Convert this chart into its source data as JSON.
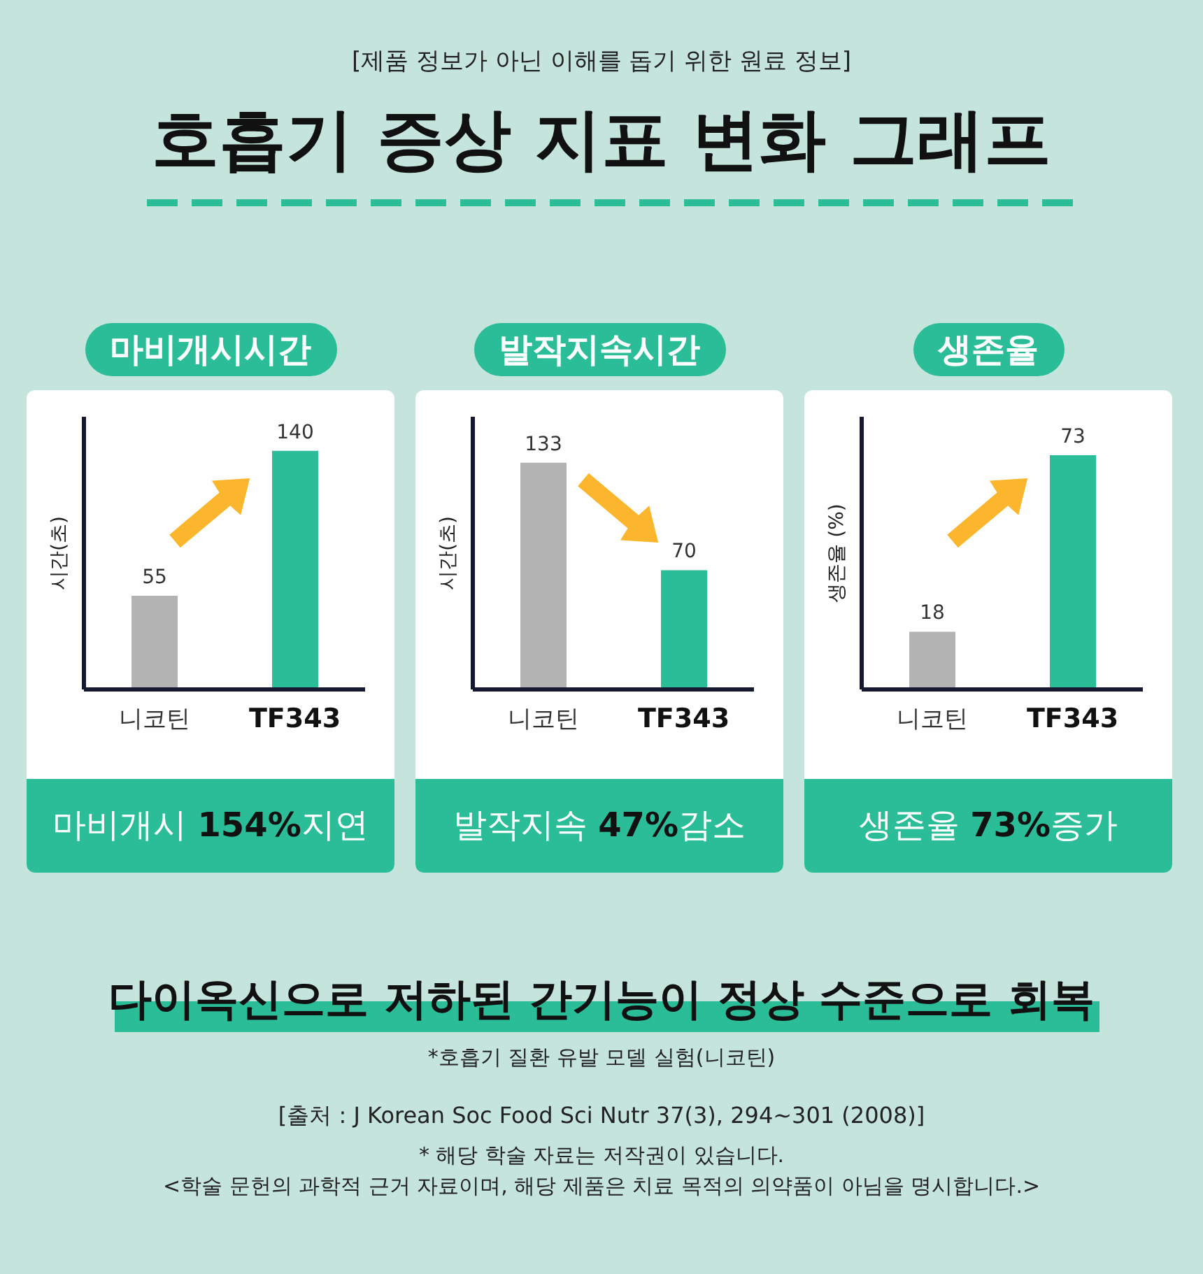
{
  "chart_data": [
    {
      "type": "other",
      "title": "호흡기 증상 지표 변화 그래프",
      "subtitle": "[제품 정보가 아닌 이해를 돕기 위한 원료 정보]"
    },
    {
      "type": "bar",
      "title": "마비개시시간",
      "ylabel": "시간(초)",
      "categories": [
        "니코틴",
        "TF343"
      ],
      "values": [
        55,
        140
      ],
      "colors": [
        "#b3b3b3",
        "#2bbd98"
      ],
      "ylim": [
        0,
        160
      ],
      "data_labels": true,
      "annotations": [
        "마비개시 154%지연"
      ]
    },
    {
      "type": "bar",
      "title": "발작지속시간",
      "ylabel": "시간(초)",
      "categories": [
        "니코틴",
        "TF343"
      ],
      "values": [
        133,
        70
      ],
      "colors": [
        "#b3b3b3",
        "#2bbd98"
      ],
      "ylim": [
        0,
        160
      ],
      "data_labels": true,
      "annotations": [
        "발작지속 47%감소"
      ]
    },
    {
      "type": "bar",
      "title": "생존율",
      "ylabel": "생존율 (%)",
      "categories": [
        "니코틴",
        "TF343"
      ],
      "values": [
        18,
        73
      ],
      "colors": [
        "#b3b3b3",
        "#2bbd98"
      ],
      "ylim": [
        0,
        85
      ],
      "data_labels": true,
      "annotations": [
        "생존율 73%증가"
      ]
    },
    {
      "type": "other",
      "title": "다이옥신으로 저하된 간기능이 정상 수준으로 회복",
      "annotations": [
        "*호흡기 질환 유발 모델 실험(니코틴)",
        "[출처 : J Korean Soc Food Sci Nutr 37(3), 294~301 (2008)]",
        "* 해당 학술 자료는 저작권이 있습니다.",
        "<학술 문헌의 과학적 근거 자료이며, 해당 제품은 치료 목적의 의약품이 아님을 명시합니다.>"
      ]
    }
  ]
}
